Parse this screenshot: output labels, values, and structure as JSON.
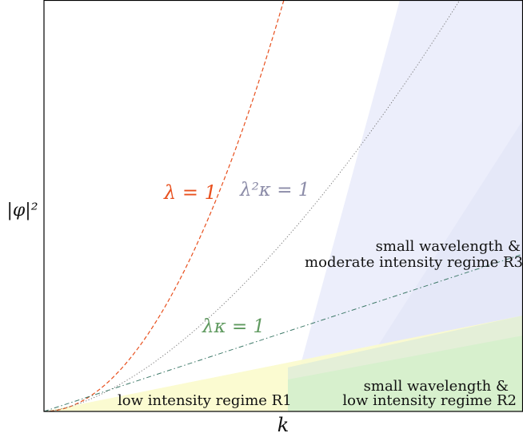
{
  "axes": {
    "xlabel": "k",
    "ylabel": "|φ|²"
  },
  "colors": {
    "lambda_curve": "#e8501e",
    "lambda2kappa_curve": "#8a8a9a",
    "lambdakappa_curve": "#5f9a5f",
    "region_r1": "#fbfbc8",
    "region_r2": "#cfeec4",
    "region_r3": "#e6e8fa"
  },
  "curves": {
    "lambda_eq_1": "λ = 1",
    "lambda2kappa_eq_1": "λ²κ = 1",
    "lambdakappa_eq_1": "λκ = 1"
  },
  "regions": {
    "r3_line1": "small wavelength &",
    "r3_line2": "moderate intensity regime R3",
    "r2_line1": "small wavelength &",
    "r2_line2": "low intensity regime R2",
    "r1": "low intensity regime R1"
  }
}
